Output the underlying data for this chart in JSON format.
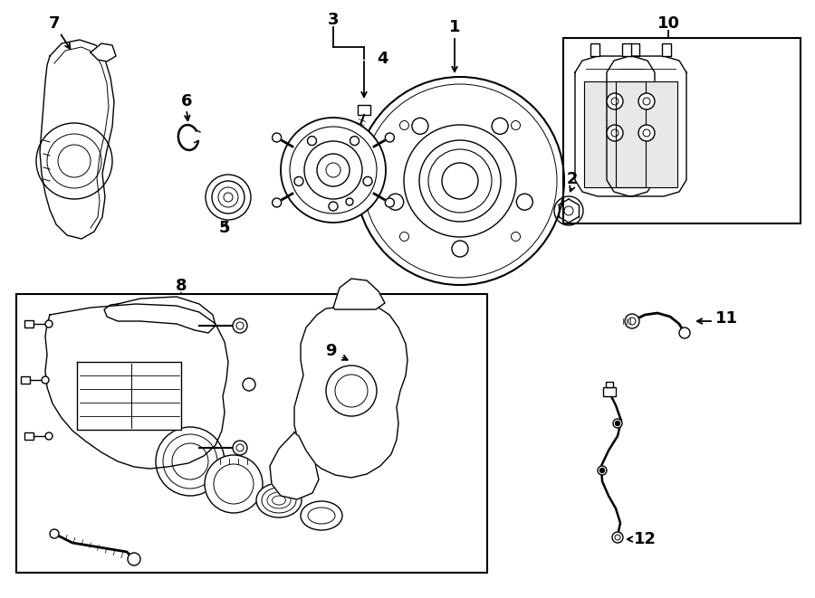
{
  "bg_color": "#ffffff",
  "line_color": "#000000",
  "fig_width": 9.0,
  "fig_height": 6.61,
  "dpi": 100,
  "lw": 1.0
}
